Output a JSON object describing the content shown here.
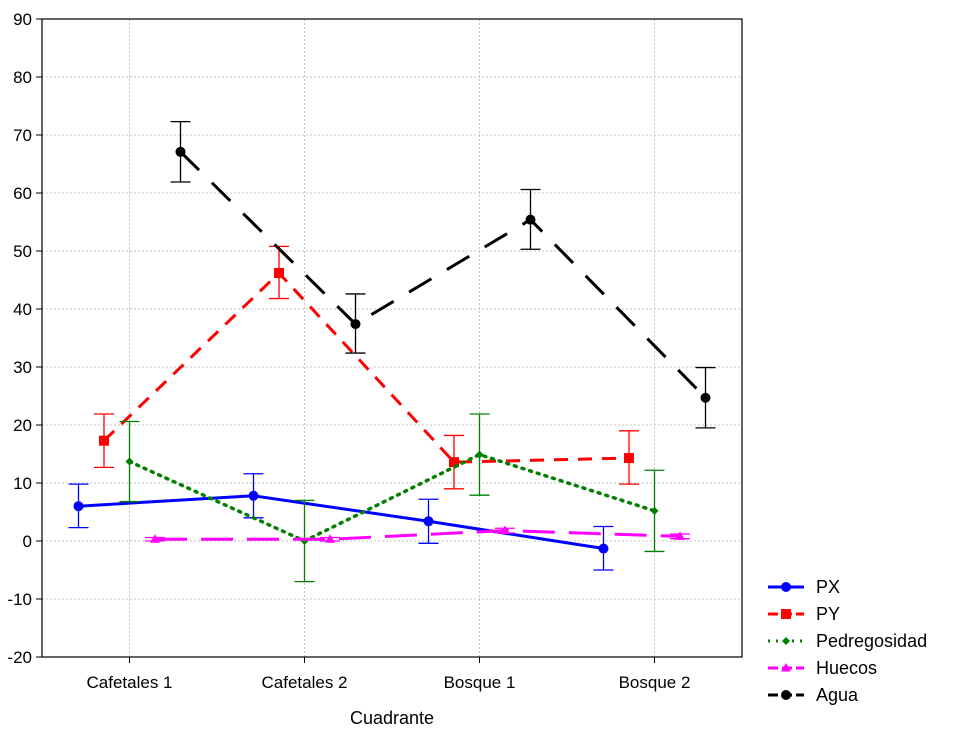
{
  "chart_data": {
    "type": "line",
    "xlabel": "Cuadrante",
    "ylabel": "",
    "categories": [
      "Cafetales 1",
      "Cafetales 2",
      "Bosque 1",
      "Bosque 2"
    ],
    "ylim": [
      -20,
      90
    ],
    "yticks": [
      -20,
      -10,
      0,
      10,
      20,
      30,
      40,
      50,
      60,
      70,
      80,
      90
    ],
    "grid": true,
    "legend_position": "bottom-right",
    "series": [
      {
        "name": "PX",
        "color": "#0000ff",
        "dash": "solid",
        "marker": "circle",
        "offset": -1.5,
        "values": [
          6.0,
          7.8,
          3.4,
          -1.3
        ],
        "err_low": [
          2.3,
          4.0,
          -0.4,
          -5.0
        ],
        "err_high": [
          9.8,
          11.6,
          7.2,
          2.5
        ]
      },
      {
        "name": "PY",
        "color": "#ff0000",
        "dash": "longdash",
        "marker": "square",
        "offset": -0.75,
        "values": [
          17.3,
          46.2,
          13.6,
          14.3
        ],
        "err_low": [
          12.7,
          41.8,
          9.0,
          9.8
        ],
        "err_high": [
          21.9,
          50.8,
          18.2,
          19.0
        ]
      },
      {
        "name": "Pedregosidad",
        "color": "#008000",
        "dash": "dotted",
        "marker": "diamond",
        "offset": 0,
        "values": [
          13.7,
          0.0,
          14.9,
          5.2
        ],
        "err_low": [
          6.8,
          -7.0,
          7.9,
          -1.8
        ],
        "err_high": [
          20.6,
          7.0,
          21.9,
          12.2
        ]
      },
      {
        "name": "Huecos",
        "color": "#ff00ff",
        "dash": "dashed",
        "marker": "triangle",
        "offset": 0.75,
        "values": [
          0.3,
          0.3,
          1.8,
          0.8
        ],
        "err_low": [
          0.0,
          0.0,
          1.4,
          0.4
        ],
        "err_high": [
          0.6,
          0.6,
          2.2,
          1.2
        ]
      },
      {
        "name": "Agua",
        "color": "#000000",
        "dash": "dashdot",
        "marker": "circle",
        "offset": 1.5,
        "values": [
          67.1,
          37.4,
          55.4,
          24.7
        ],
        "err_low": [
          61.9,
          32.4,
          50.3,
          19.5
        ],
        "err_high": [
          72.3,
          42.6,
          60.6,
          29.9
        ]
      }
    ]
  }
}
